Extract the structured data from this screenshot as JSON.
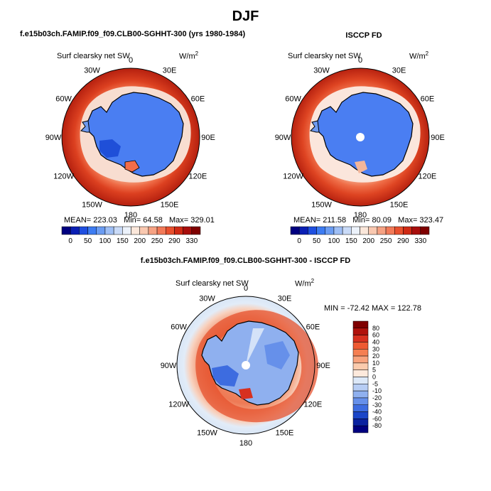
{
  "page": {
    "title": "DJF",
    "left_panel_title": "f.e15b03ch.FAMIP.f09_f09.CLB00-SGHHT-300 (yrs 1980-1984)",
    "right_panel_title": "ISCCP FD",
    "diff_panel_title": "f.e15b03ch.FAMIP.f09_f09.CLB00-SGHHT-300 - ISCCP FD"
  },
  "maps": {
    "model": {
      "variable": "Surf clearsky net SW",
      "units": "W/m",
      "units_exp": "2",
      "lon_labels": [
        "0",
        "30E",
        "60E",
        "90E",
        "120E",
        "150E",
        "180",
        "150W",
        "120W",
        "90W",
        "60W",
        "30W"
      ],
      "stats": {
        "mean": "MEAN= 223.03",
        "min": "Min= 64.58",
        "max": "Max= 329.01"
      }
    },
    "obs": {
      "variable": "Surf clearsky net SW",
      "units": "W/m",
      "units_exp": "2",
      "lon_labels": [
        "0",
        "30E",
        "60E",
        "90E",
        "120E",
        "150E",
        "180",
        "150W",
        "120W",
        "90W",
        "60W",
        "30W"
      ],
      "stats": {
        "mean": "MEAN= 211.58",
        "min": "Min= 80.09",
        "max": "Max= 323.47"
      }
    },
    "diff": {
      "variable": "Surf clearsky net SW",
      "units": "W/m",
      "units_exp": "2",
      "lon_labels": [
        "0",
        "30E",
        "60E",
        "90E",
        "120E",
        "150E",
        "180",
        "150W",
        "120W",
        "90W",
        "60W",
        "30W"
      ],
      "stats": {
        "minmax": "MIN = -72.42  MAX = 122.78"
      }
    }
  },
  "colorbars": {
    "main": {
      "labels": [
        "0",
        "50",
        "100",
        "150",
        "200",
        "250",
        "290",
        "330"
      ],
      "colors": [
        "#000080",
        "#0a1fb4",
        "#1f4fe0",
        "#3d7cf2",
        "#6b9cf2",
        "#9fbff5",
        "#c9daf7",
        "#ecf2fb",
        "#fbe7da",
        "#f9c8b0",
        "#f6a283",
        "#f27a58",
        "#e8502e",
        "#cf2a14",
        "#a80e0c",
        "#7f0000"
      ]
    },
    "diff": {
      "labels": [
        "80",
        "60",
        "40",
        "30",
        "20",
        "10",
        "5",
        "0",
        "-5",
        "-10",
        "-20",
        "-30",
        "-40",
        "-60",
        "-80"
      ],
      "colors": [
        "#7f0000",
        "#b0120c",
        "#d7301f",
        "#ee5a32",
        "#f57f52",
        "#f8a37d",
        "#fbcbad",
        "#fde9dc",
        "#dce8f8",
        "#b7cdf4",
        "#8fb0ef",
        "#6690ea",
        "#3d6ce0",
        "#1a45c8",
        "#0a22a0",
        "#000080"
      ]
    }
  }
}
